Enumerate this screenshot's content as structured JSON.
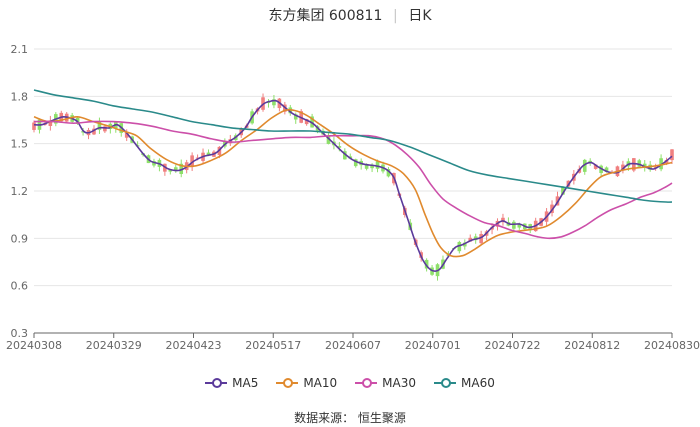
{
  "header": {
    "stock": "东方集团 600811",
    "period": "日K"
  },
  "source": "数据来源： 恒生聚源",
  "chart_data": {
    "type": "candlestick",
    "ylim": [
      0.3,
      2.1
    ],
    "yticks": [
      "2.1",
      "1.8",
      "1.5",
      "1.2",
      "0.9",
      "0.6",
      "0.3"
    ],
    "xticks": [
      "20240308",
      "20240329",
      "20240423",
      "20240517",
      "20240607",
      "20240701",
      "20240722",
      "20240812",
      "20240830"
    ],
    "grid": true,
    "legend_position": "bottom",
    "up_color": "#f08080",
    "down_color": "#8ee06a",
    "series": [
      {
        "name": "MA5",
        "color": "#5b3a9b",
        "points": [
          [
            0,
            1.62
          ],
          [
            8,
            1.62
          ],
          [
            16,
            1.64
          ],
          [
            24,
            1.66
          ],
          [
            30,
            1.67
          ],
          [
            38,
            1.66
          ],
          [
            44,
            1.64
          ],
          [
            50,
            1.58
          ],
          [
            56,
            1.57
          ],
          [
            66,
            1.6
          ],
          [
            76,
            1.6
          ],
          [
            84,
            1.62
          ],
          [
            92,
            1.58
          ],
          [
            100,
            1.52
          ],
          [
            110,
            1.44
          ],
          [
            118,
            1.39
          ],
          [
            128,
            1.37
          ],
          [
            136,
            1.34
          ],
          [
            146,
            1.33
          ],
          [
            154,
            1.35
          ],
          [
            162,
            1.39
          ],
          [
            172,
            1.42
          ],
          [
            184,
            1.44
          ],
          [
            194,
            1.5
          ],
          [
            204,
            1.54
          ],
          [
            214,
            1.6
          ],
          [
            222,
            1.68
          ],
          [
            232,
            1.75
          ],
          [
            240,
            1.77
          ],
          [
            246,
            1.77
          ],
          [
            254,
            1.73
          ],
          [
            262,
            1.69
          ],
          [
            272,
            1.66
          ],
          [
            282,
            1.63
          ],
          [
            292,
            1.57
          ],
          [
            302,
            1.51
          ],
          [
            312,
            1.45
          ],
          [
            322,
            1.4
          ],
          [
            334,
            1.37
          ],
          [
            346,
            1.36
          ],
          [
            356,
            1.34
          ],
          [
            364,
            1.29
          ],
          [
            370,
            1.18
          ],
          [
            378,
            1.03
          ],
          [
            386,
            0.88
          ],
          [
            394,
            0.76
          ],
          [
            402,
            0.7
          ],
          [
            410,
            0.7
          ],
          [
            418,
            0.77
          ],
          [
            426,
            0.84
          ],
          [
            434,
            0.86
          ],
          [
            444,
            0.89
          ],
          [
            454,
            0.91
          ],
          [
            464,
            0.97
          ],
          [
            474,
            1.01
          ],
          [
            482,
            0.99
          ],
          [
            492,
            0.99
          ],
          [
            500,
            0.97
          ],
          [
            508,
            0.98
          ],
          [
            518,
            1.03
          ],
          [
            528,
            1.11
          ],
          [
            538,
            1.21
          ],
          [
            548,
            1.3
          ],
          [
            556,
            1.36
          ],
          [
            564,
            1.38
          ],
          [
            572,
            1.35
          ],
          [
            582,
            1.32
          ],
          [
            592,
            1.32
          ],
          [
            602,
            1.37
          ],
          [
            612,
            1.37
          ],
          [
            620,
            1.35
          ],
          [
            628,
            1.34
          ],
          [
            638,
            1.38
          ],
          [
            646,
            1.42
          ]
        ]
      },
      {
        "name": "MA10",
        "color": "#e08a2e",
        "points": [
          [
            0,
            1.67
          ],
          [
            14,
            1.64
          ],
          [
            28,
            1.65
          ],
          [
            44,
            1.67
          ],
          [
            60,
            1.64
          ],
          [
            76,
            1.61
          ],
          [
            90,
            1.58
          ],
          [
            104,
            1.55
          ],
          [
            118,
            1.47
          ],
          [
            134,
            1.4
          ],
          [
            150,
            1.36
          ],
          [
            164,
            1.36
          ],
          [
            178,
            1.39
          ],
          [
            194,
            1.44
          ],
          [
            210,
            1.52
          ],
          [
            226,
            1.59
          ],
          [
            240,
            1.66
          ],
          [
            254,
            1.71
          ],
          [
            264,
            1.71
          ],
          [
            276,
            1.68
          ],
          [
            290,
            1.62
          ],
          [
            304,
            1.56
          ],
          [
            318,
            1.49
          ],
          [
            334,
            1.43
          ],
          [
            348,
            1.39
          ],
          [
            362,
            1.36
          ],
          [
            374,
            1.31
          ],
          [
            386,
            1.21
          ],
          [
            396,
            1.05
          ],
          [
            404,
            0.93
          ],
          [
            412,
            0.84
          ],
          [
            422,
            0.79
          ],
          [
            434,
            0.79
          ],
          [
            446,
            0.83
          ],
          [
            458,
            0.88
          ],
          [
            470,
            0.92
          ],
          [
            484,
            0.94
          ],
          [
            496,
            0.95
          ],
          [
            508,
            0.96
          ],
          [
            520,
            0.98
          ],
          [
            534,
            1.04
          ],
          [
            548,
            1.12
          ],
          [
            562,
            1.22
          ],
          [
            574,
            1.29
          ],
          [
            588,
            1.32
          ],
          [
            602,
            1.34
          ],
          [
            616,
            1.35
          ],
          [
            630,
            1.36
          ],
          [
            646,
            1.38
          ]
        ]
      },
      {
        "name": "MA30",
        "color": "#cc4fa9",
        "points": [
          [
            0,
            1.64
          ],
          [
            20,
            1.64
          ],
          [
            40,
            1.63
          ],
          [
            60,
            1.64
          ],
          [
            80,
            1.64
          ],
          [
            100,
            1.63
          ],
          [
            120,
            1.61
          ],
          [
            140,
            1.58
          ],
          [
            160,
            1.56
          ],
          [
            180,
            1.53
          ],
          [
            200,
            1.51
          ],
          [
            220,
            1.52
          ],
          [
            240,
            1.53
          ],
          [
            260,
            1.54
          ],
          [
            280,
            1.54
          ],
          [
            300,
            1.55
          ],
          [
            320,
            1.55
          ],
          [
            340,
            1.55
          ],
          [
            354,
            1.53
          ],
          [
            366,
            1.49
          ],
          [
            378,
            1.43
          ],
          [
            390,
            1.35
          ],
          [
            402,
            1.24
          ],
          [
            414,
            1.15
          ],
          [
            428,
            1.09
          ],
          [
            442,
            1.04
          ],
          [
            456,
            1.0
          ],
          [
            470,
            0.98
          ],
          [
            484,
            0.95
          ],
          [
            498,
            0.93
          ],
          [
            510,
            0.91
          ],
          [
            522,
            0.9
          ],
          [
            534,
            0.91
          ],
          [
            546,
            0.94
          ],
          [
            558,
            0.98
          ],
          [
            570,
            1.03
          ],
          [
            584,
            1.08
          ],
          [
            600,
            1.12
          ],
          [
            614,
            1.16
          ],
          [
            628,
            1.19
          ],
          [
            638,
            1.22
          ],
          [
            646,
            1.25
          ]
        ]
      },
      {
        "name": "MA60",
        "color": "#2a8a8a",
        "points": [
          [
            0,
            1.84
          ],
          [
            20,
            1.81
          ],
          [
            40,
            1.79
          ],
          [
            60,
            1.77
          ],
          [
            80,
            1.74
          ],
          [
            100,
            1.72
          ],
          [
            120,
            1.7
          ],
          [
            140,
            1.67
          ],
          [
            160,
            1.64
          ],
          [
            180,
            1.62
          ],
          [
            200,
            1.6
          ],
          [
            220,
            1.59
          ],
          [
            240,
            1.58
          ],
          [
            260,
            1.58
          ],
          [
            280,
            1.58
          ],
          [
            300,
            1.57
          ],
          [
            320,
            1.56
          ],
          [
            340,
            1.54
          ],
          [
            360,
            1.52
          ],
          [
            380,
            1.48
          ],
          [
            400,
            1.43
          ],
          [
            420,
            1.38
          ],
          [
            440,
            1.33
          ],
          [
            460,
            1.3
          ],
          [
            480,
            1.28
          ],
          [
            500,
            1.26
          ],
          [
            520,
            1.24
          ],
          [
            540,
            1.22
          ],
          [
            560,
            1.2
          ],
          [
            580,
            1.18
          ],
          [
            600,
            1.16
          ],
          [
            620,
            1.14
          ],
          [
            640,
            1.13
          ],
          [
            646,
            1.13
          ]
        ]
      }
    ]
  }
}
